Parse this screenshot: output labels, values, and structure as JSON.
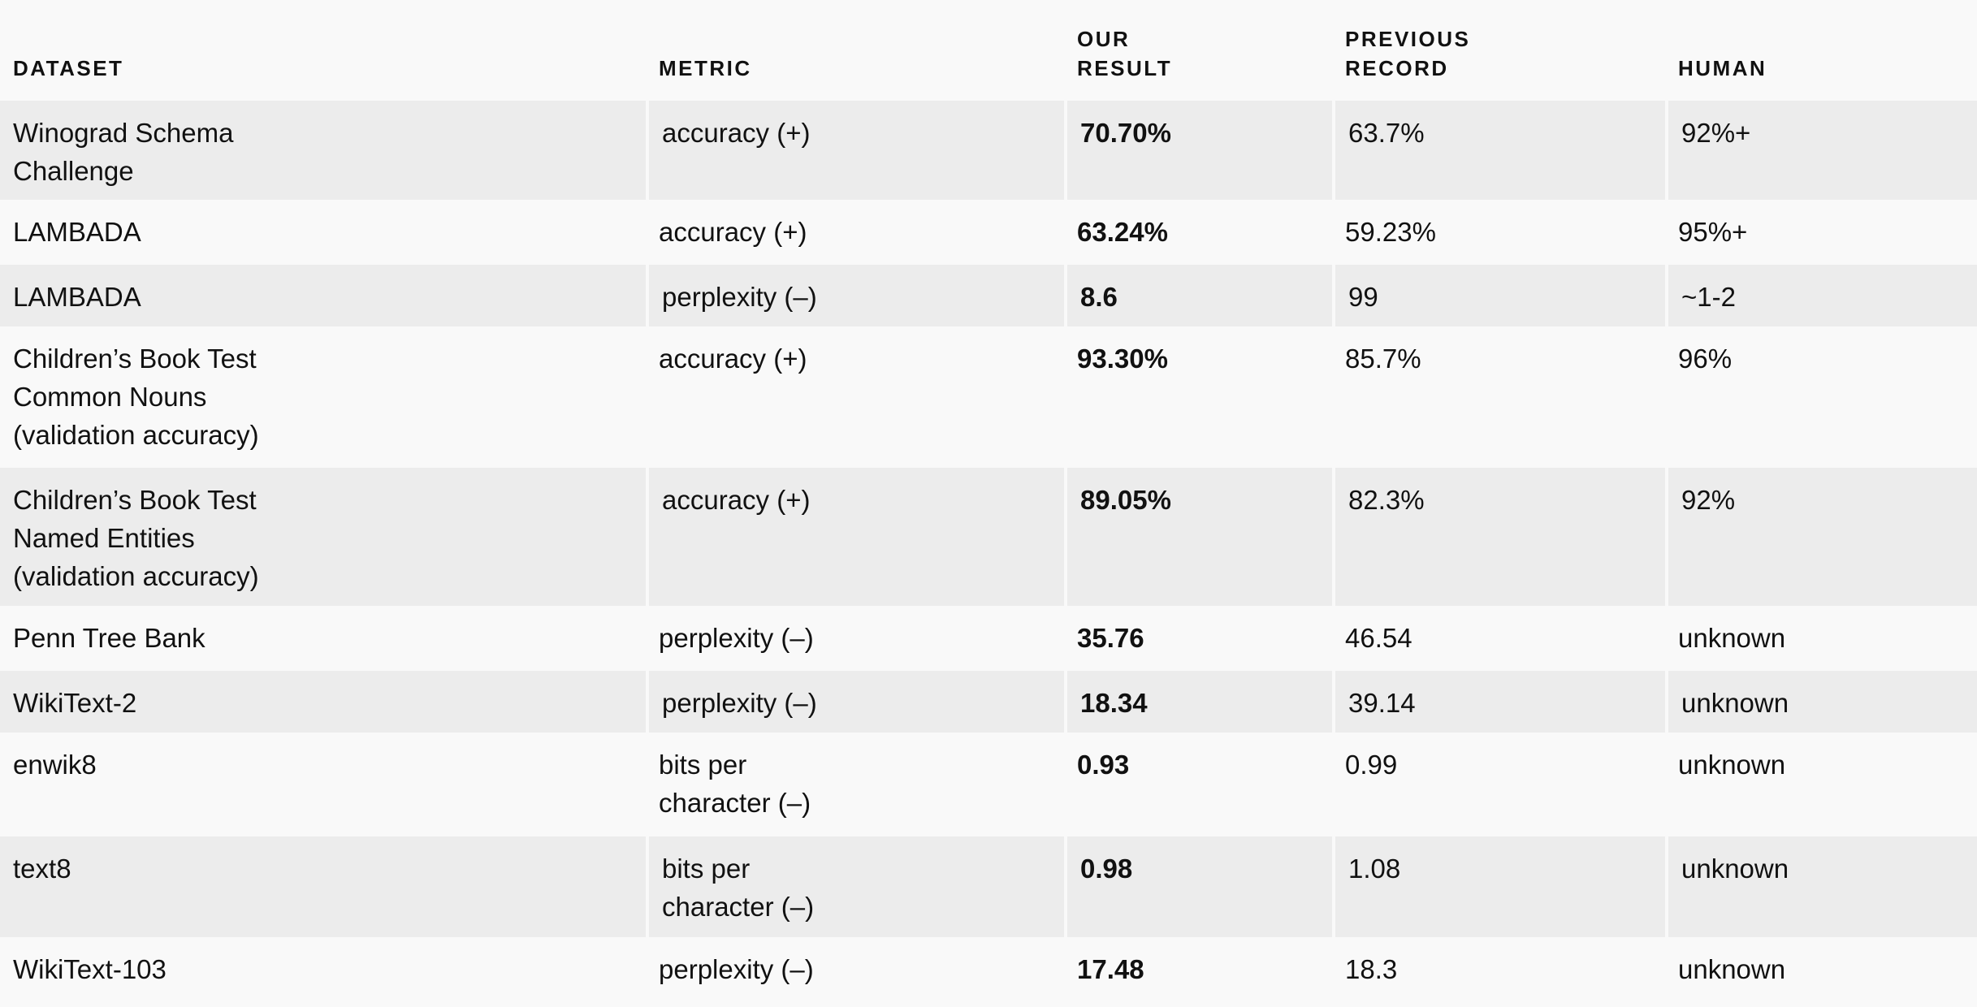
{
  "table": {
    "headers": {
      "dataset": "DATASET",
      "metric": "METRIC",
      "our_result": "OUR\nRESULT",
      "previous_record": "PREVIOUS\nRECORD",
      "human": "HUMAN"
    },
    "rows": [
      {
        "dataset": "Winograd Schema\nChallenge",
        "metric": "accuracy (+)",
        "our_result": "70.70%",
        "previous_record": "63.7%",
        "human": "92%+"
      },
      {
        "dataset": "LAMBADA",
        "metric": "accuracy (+)",
        "our_result": "63.24%",
        "previous_record": "59.23%",
        "human": "95%+"
      },
      {
        "dataset": "LAMBADA",
        "metric": "perplexity (–)",
        "our_result": "8.6",
        "previous_record": "99",
        "human": "~1-2"
      },
      {
        "dataset": "Children’s Book Test\nCommon Nouns\n(validation accuracy)",
        "metric": "accuracy (+)",
        "our_result": "93.30%",
        "previous_record": "85.7%",
        "human": "96%"
      },
      {
        "dataset": "Children’s Book Test\nNamed Entities\n(validation accuracy)",
        "metric": "accuracy (+)",
        "our_result": "89.05%",
        "previous_record": "82.3%",
        "human": "92%"
      },
      {
        "dataset": "Penn Tree Bank",
        "metric": "perplexity (–)",
        "our_result": "35.76",
        "previous_record": "46.54",
        "human": "unknown"
      },
      {
        "dataset": "WikiText-2",
        "metric": "perplexity (–)",
        "our_result": "18.34",
        "previous_record": "39.14",
        "human": "unknown"
      },
      {
        "dataset": "enwik8",
        "metric": "bits per\ncharacter (–)",
        "our_result": "0.93",
        "previous_record": "0.99",
        "human": "unknown"
      },
      {
        "dataset": "text8",
        "metric": "bits per\ncharacter (–)",
        "our_result": "0.98",
        "previous_record": "1.08",
        "human": "unknown"
      },
      {
        "dataset": "WikiText-103",
        "metric": "perplexity (–)",
        "our_result": "17.48",
        "previous_record": "18.3",
        "human": "unknown"
      }
    ]
  }
}
